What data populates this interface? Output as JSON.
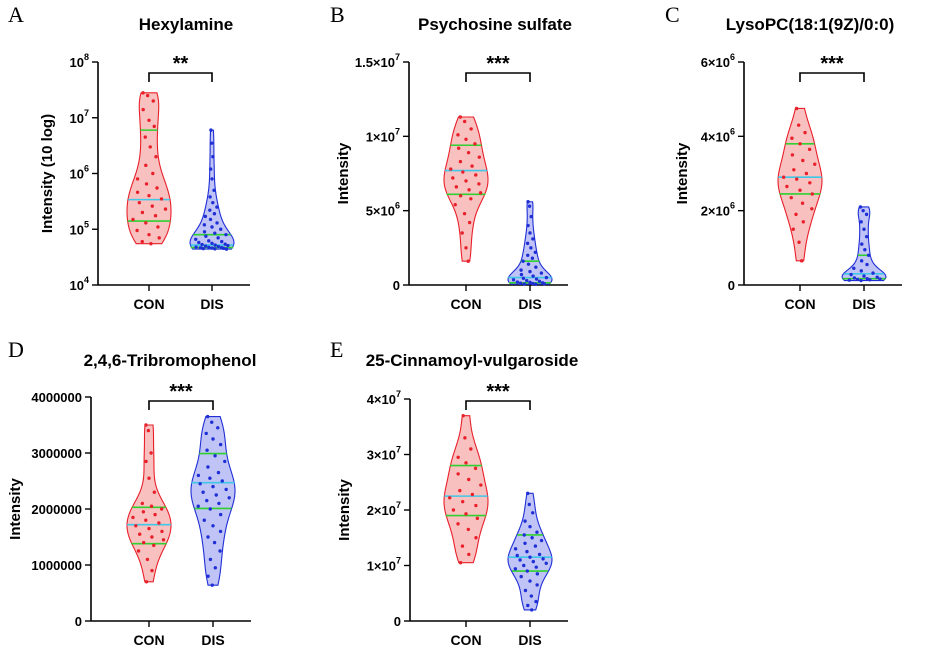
{
  "chart_data": [
    {
      "id": "A",
      "panel_label": "A",
      "type": "violin",
      "title": "Hexylamine",
      "ylabel": "Intensity (10 log)",
      "yscale": "log",
      "ylim": [
        10000,
        100000000
      ],
      "yticks": [
        10000,
        100000,
        1000000,
        10000000,
        100000000
      ],
      "ytick_labels": [
        {
          "base": "10",
          "exp": "4"
        },
        {
          "base": "10",
          "exp": "5"
        },
        {
          "base": "10",
          "exp": "6"
        },
        {
          "base": "10",
          "exp": "7"
        },
        {
          "base": "10",
          "exp": "8"
        }
      ],
      "categories": [
        "CON",
        "DIS"
      ],
      "significance": "**",
      "groups": [
        {
          "name": "CON",
          "color": "#e8202a",
          "fill": "#f8b9b9",
          "min": 55000,
          "max": 28000000,
          "median": 340000,
          "q1": 140000,
          "q3": 6000000,
          "points": [
            28000000,
            25000000,
            20000000,
            14000000,
            9000000,
            7000000,
            4500000,
            3000000,
            2000000,
            1400000,
            1000000,
            800000,
            650000,
            550000,
            460000,
            400000,
            350000,
            300000,
            260000,
            230000,
            200000,
            175000,
            150000,
            130000,
            110000,
            95000,
            80000,
            70000,
            60000,
            55000
          ]
        },
        {
          "name": "DIS",
          "color": "#1f2fd6",
          "fill": "#b9bdf5",
          "min": 44000,
          "max": 6000000,
          "median": 52000,
          "q1": 47000,
          "q3": 80000,
          "points": [
            6000000,
            3500000,
            2000000,
            1200000,
            800000,
            500000,
            380000,
            300000,
            250000,
            220000,
            190000,
            170000,
            150000,
            130000,
            120000,
            110000,
            100000,
            90000,
            85000,
            80000,
            75000,
            70000,
            66000,
            62000,
            60000,
            58000,
            56000,
            54000,
            53000,
            52000,
            51000,
            50000,
            49000,
            48000,
            47500,
            47000,
            46500,
            46000,
            45500,
            45000,
            44500,
            44000
          ]
        }
      ]
    },
    {
      "id": "B",
      "panel_label": "B",
      "type": "violin",
      "title": "Psychosine sulfate",
      "ylabel": "Intensity",
      "yscale": "linear",
      "ylim": [
        0,
        15000000
      ],
      "yticks": [
        0,
        5000000,
        10000000,
        15000000
      ],
      "ytick_labels": [
        {
          "base": "0",
          "exp": ""
        },
        {
          "base": "5×10",
          "exp": "6"
        },
        {
          "base": "1×10",
          "exp": "7"
        },
        {
          "base": "1.5×10",
          "exp": "7"
        }
      ],
      "categories": [
        "CON",
        "DIS"
      ],
      "significance": "***",
      "groups": [
        {
          "name": "CON",
          "color": "#e8202a",
          "fill": "#f8b9b9",
          "min": 1600000,
          "max": 11300000,
          "median": 7700000,
          "q1": 6100000,
          "q3": 9400000,
          "points": [
            11300000,
            11000000,
            10500000,
            10100000,
            9800000,
            9500000,
            9200000,
            8900000,
            8600000,
            8300000,
            8000000,
            7800000,
            7600000,
            7400000,
            7200000,
            7000000,
            6800000,
            6600000,
            6400000,
            6200000,
            6000000,
            5800000,
            5400000,
            4800000,
            4200000,
            3500000,
            2500000,
            1600000
          ]
        },
        {
          "name": "DIS",
          "color": "#1f2fd6",
          "fill": "#b9bdf5",
          "min": 50000,
          "max": 5600000,
          "median": 500000,
          "q1": 150000,
          "q3": 1600000,
          "points": [
            5600000,
            5300000,
            4600000,
            4000000,
            3500000,
            3100000,
            2800000,
            2500000,
            2200000,
            2000000,
            1800000,
            1600000,
            1400000,
            1200000,
            1000000,
            900000,
            800000,
            700000,
            600000,
            500000,
            450000,
            400000,
            350000,
            300000,
            250000,
            200000,
            180000,
            150000,
            120000,
            100000,
            80000,
            60000,
            50000
          ]
        }
      ]
    },
    {
      "id": "C",
      "panel_label": "C",
      "type": "violin",
      "title": "LysoPC(18:1(9Z)/0:0)",
      "ylabel": "Intensity",
      "yscale": "linear",
      "ylim": [
        0,
        6000000
      ],
      "yticks": [
        0,
        2000000,
        4000000,
        6000000
      ],
      "ytick_labels": [
        {
          "base": "0",
          "exp": ""
        },
        {
          "base": "2×10",
          "exp": "6"
        },
        {
          "base": "4×10",
          "exp": "6"
        },
        {
          "base": "6×10",
          "exp": "6"
        }
      ],
      "categories": [
        "CON",
        "DIS"
      ],
      "significance": "***",
      "groups": [
        {
          "name": "CON",
          "color": "#e8202a",
          "fill": "#f8b9b9",
          "min": 650000,
          "max": 4750000,
          "median": 2900000,
          "q1": 2450000,
          "q3": 3800000,
          "points": [
            4750000,
            4300000,
            4100000,
            3950000,
            3800000,
            3650000,
            3500000,
            3350000,
            3250000,
            3100000,
            3000000,
            2900000,
            2850000,
            2750000,
            2650000,
            2550000,
            2450000,
            2350000,
            2200000,
            2050000,
            1900000,
            1700000,
            1500000,
            1150000,
            650000
          ]
        },
        {
          "name": "DIS",
          "color": "#1f2fd6",
          "fill": "#b9bdf5",
          "min": 120000,
          "max": 2100000,
          "median": 300000,
          "q1": 170000,
          "q3": 800000,
          "points": [
            2100000,
            2000000,
            1900000,
            1700000,
            1500000,
            1300000,
            1100000,
            950000,
            800000,
            650000,
            550000,
            450000,
            380000,
            320000,
            280000,
            240000,
            210000,
            190000,
            170000,
            160000,
            150000,
            140000,
            130000,
            120000
          ]
        }
      ]
    },
    {
      "id": "D",
      "panel_label": "D",
      "type": "violin",
      "title": "2,4,6-Tribromophenol",
      "ylabel": "Intensity",
      "yscale": "linear",
      "ylim": [
        0,
        4000000
      ],
      "yticks": [
        0,
        1000000,
        2000000,
        3000000,
        4000000
      ],
      "ytick_labels": [
        {
          "base": "0",
          "exp": ""
        },
        {
          "base": "1000000",
          "exp": ""
        },
        {
          "base": "2000000",
          "exp": ""
        },
        {
          "base": "3000000",
          "exp": ""
        },
        {
          "base": "4000000",
          "exp": ""
        }
      ],
      "categories": [
        "CON",
        "DIS"
      ],
      "significance": "***",
      "groups": [
        {
          "name": "CON",
          "color": "#e8202a",
          "fill": "#f8b9b9",
          "min": 700000,
          "max": 3500000,
          "median": 1720000,
          "q1": 1380000,
          "q3": 2030000,
          "points": [
            3500000,
            3400000,
            3000000,
            2850000,
            2550000,
            2300000,
            2100000,
            2050000,
            2000000,
            1950000,
            1900000,
            1850000,
            1800000,
            1750000,
            1700000,
            1650000,
            1600000,
            1550000,
            1500000,
            1450000,
            1400000,
            1350000,
            1250000,
            1100000,
            900000,
            700000
          ]
        },
        {
          "name": "DIS",
          "color": "#1f2fd6",
          "fill": "#b9bdf5",
          "min": 640000,
          "max": 3650000,
          "median": 2470000,
          "q1": 2010000,
          "q3": 2990000,
          "points": [
            3650000,
            3550000,
            3450000,
            3350000,
            3250000,
            3150000,
            3050000,
            2950000,
            2850000,
            2750000,
            2650000,
            2600000,
            2550000,
            2500000,
            2450000,
            2400000,
            2350000,
            2300000,
            2250000,
            2200000,
            2150000,
            2100000,
            2050000,
            2000000,
            1900000,
            1800000,
            1700000,
            1600000,
            1500000,
            1400000,
            1250000,
            1100000,
            950000,
            800000,
            640000
          ]
        }
      ]
    },
    {
      "id": "E",
      "panel_label": "E",
      "type": "violin",
      "title": "25-Cinnamoyl-vulgaroside",
      "ylabel": "Intensity",
      "yscale": "linear",
      "ylim": [
        0,
        40000000
      ],
      "yticks": [
        0,
        10000000,
        20000000,
        30000000,
        40000000
      ],
      "ytick_labels": [
        {
          "base": "0",
          "exp": ""
        },
        {
          "base": "1×10",
          "exp": "7"
        },
        {
          "base": "2×10",
          "exp": "7"
        },
        {
          "base": "3×10",
          "exp": "7"
        },
        {
          "base": "4×10",
          "exp": "7"
        }
      ],
      "categories": [
        "CON",
        "DIS"
      ],
      "significance": "***",
      "groups": [
        {
          "name": "CON",
          "color": "#e8202a",
          "fill": "#f8b9b9",
          "min": 10500000,
          "max": 37000000,
          "median": 22500000,
          "q1": 19000000,
          "q3": 28000000,
          "points": [
            37000000,
            33000000,
            31000000,
            29500000,
            28500000,
            27500000,
            26500000,
            25500000,
            24500000,
            23500000,
            22800000,
            22200000,
            21500000,
            20800000,
            20000000,
            19300000,
            18500000,
            17500000,
            16500000,
            15000000,
            13500000,
            12000000,
            10500000
          ]
        },
        {
          "name": "DIS",
          "color": "#1f2fd6",
          "fill": "#b9bdf5",
          "min": 2000000,
          "max": 23000000,
          "median": 11500000,
          "q1": 9000000,
          "q3": 15500000,
          "points": [
            23000000,
            21000000,
            19500000,
            18000000,
            17000000,
            16000000,
            15500000,
            15000000,
            14500000,
            14000000,
            13500000,
            13000000,
            12500000,
            12000000,
            11800000,
            11500000,
            11200000,
            11000000,
            10700000,
            10400000,
            10000000,
            9700000,
            9400000,
            9000000,
            8500000,
            8000000,
            7200000,
            6500000,
            5500000,
            4500000,
            3500000,
            2800000,
            2000000
          ]
        }
      ]
    }
  ]
}
